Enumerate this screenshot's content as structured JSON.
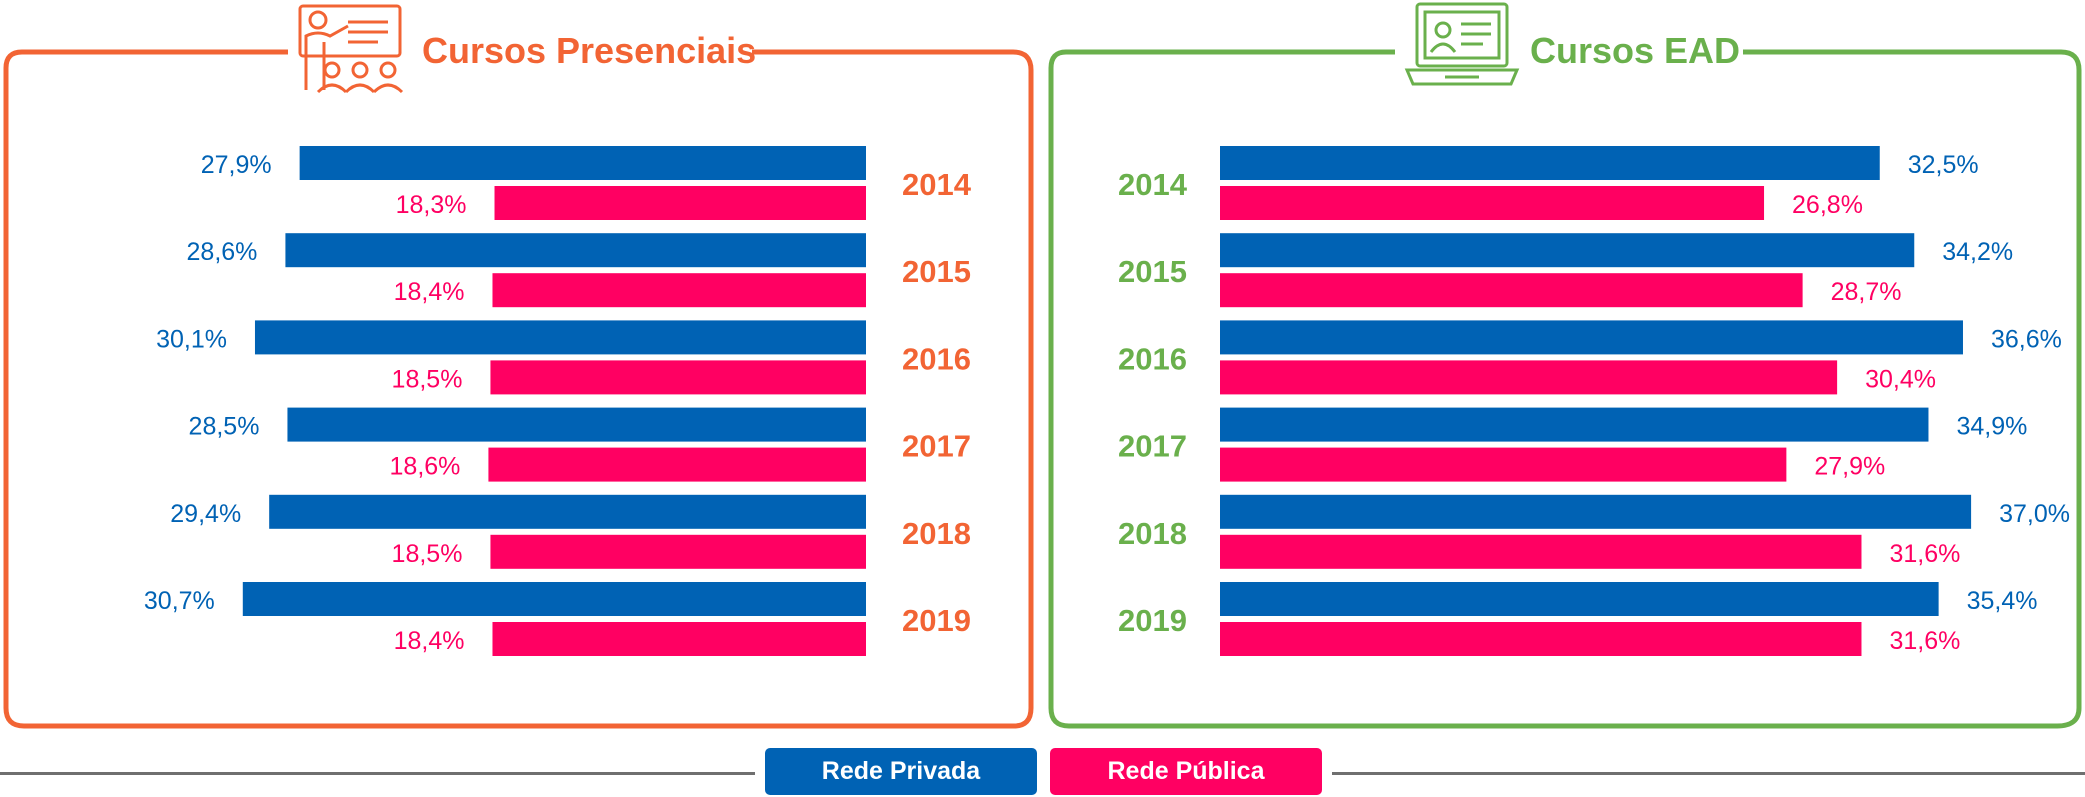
{
  "colors": {
    "privada": "#0062b4",
    "publica": "#ff0062",
    "presencial_accent": "#f26434",
    "ead_accent": "#6ab04c",
    "line": "#6f6f6f"
  },
  "icons": {
    "left": "teacher-presentation-icon",
    "right": "laptop-online-course-icon"
  },
  "legend": {
    "privada": "Rede Privada",
    "publica": "Rede Pública"
  },
  "chart_data": [
    {
      "type": "bar",
      "orientation": "horizontal",
      "title": "Cursos Presenciais",
      "categories": [
        "2014",
        "2015",
        "2016",
        "2017",
        "2018",
        "2019"
      ],
      "series": [
        {
          "name": "Rede Privada",
          "values": [
            27.9,
            28.6,
            30.1,
            28.5,
            29.4,
            30.7
          ],
          "labels": [
            "27,9%",
            "28,6%",
            "30,1%",
            "28,5%",
            "29,4%",
            "30,7%"
          ]
        },
        {
          "name": "Rede Pública",
          "values": [
            18.3,
            18.4,
            18.5,
            18.6,
            18.5,
            18.4
          ],
          "labels": [
            "18,3%",
            "18,4%",
            "18,5%",
            "18,6%",
            "18,5%",
            "18,4%"
          ]
        }
      ],
      "bar_direction": "right-to-left",
      "legend_position": "bottom",
      "grid": false
    },
    {
      "type": "bar",
      "orientation": "horizontal",
      "title": "Cursos EAD",
      "categories": [
        "2014",
        "2015",
        "2016",
        "2017",
        "2018",
        "2019"
      ],
      "series": [
        {
          "name": "Rede Privada",
          "values": [
            32.5,
            34.2,
            36.6,
            34.9,
            37.0,
            35.4
          ],
          "labels": [
            "32,5%",
            "34,2%",
            "36,6%",
            "34,9%",
            "37,0%",
            "35,4%"
          ]
        },
        {
          "name": "Rede Pública",
          "values": [
            26.8,
            28.7,
            30.4,
            27.9,
            31.6,
            31.6
          ],
          "labels": [
            "26,8%",
            "28,7%",
            "30,4%",
            "27,9%",
            "31,6%",
            "31,6%"
          ]
        }
      ],
      "bar_direction": "left-to-right",
      "legend_position": "bottom",
      "grid": false
    }
  ]
}
